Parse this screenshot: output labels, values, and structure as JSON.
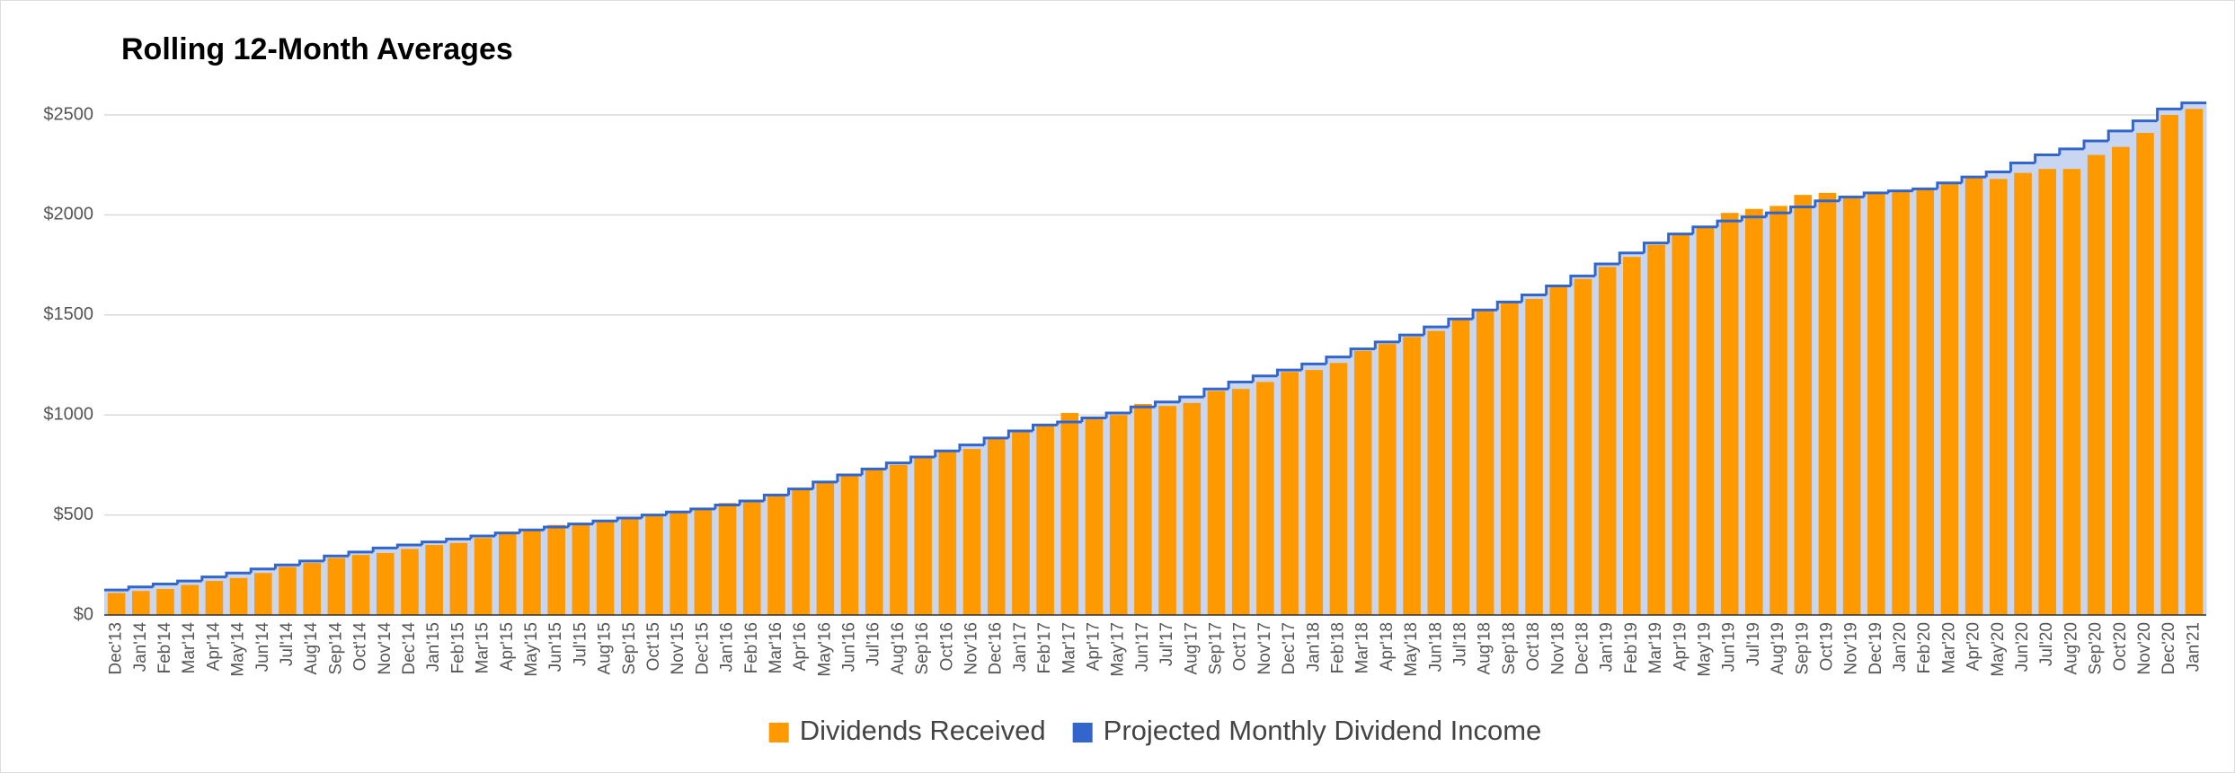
{
  "chart_data": {
    "type": "bar",
    "title": "Rolling 12-Month Averages",
    "categories": [
      "Dec'13",
      "Jan'14",
      "Feb'14",
      "Mar'14",
      "Apr'14",
      "May'14",
      "Jun'14",
      "Jul'14",
      "Aug'14",
      "Sep'14",
      "Oct'14",
      "Nov'14",
      "Dec'14",
      "Jan'15",
      "Feb'15",
      "Mar'15",
      "Apr'15",
      "May'15",
      "Jun'15",
      "Jul'15",
      "Aug'15",
      "Sep'15",
      "Oct'15",
      "Nov'15",
      "Dec'15",
      "Jan'16",
      "Feb'16",
      "Mar'16",
      "Apr'16",
      "May'16",
      "Jun'16",
      "Jul'16",
      "Aug'16",
      "Sep'16",
      "Oct'16",
      "Nov'16",
      "Dec'16",
      "Jan'17",
      "Feb'17",
      "Mar'17",
      "Apr'17",
      "May'17",
      "Jun'17",
      "Jul'17",
      "Aug'17",
      "Sep'17",
      "Oct'17",
      "Nov'17",
      "Dec'17",
      "Jan'18",
      "Feb'18",
      "Mar'18",
      "Apr'18",
      "May'18",
      "Jun'18",
      "Jul'18",
      "Aug'18",
      "Sep'18",
      "Oct'18",
      "Nov'18",
      "Dec'18",
      "Jan'19",
      "Feb'19",
      "Mar'19",
      "Apr'19",
      "May'19",
      "Jun'19",
      "Jul'19",
      "Aug'19",
      "Sep'19",
      "Oct'19",
      "Nov'19",
      "Dec'19",
      "Jan'20",
      "Feb'20",
      "Mar'20",
      "Apr'20",
      "May'20",
      "Jun'20",
      "Jul'20",
      "Aug'20",
      "Sep'20",
      "Oct'20",
      "Nov'20",
      "Dec'20",
      "Jan'21"
    ],
    "series": [
      {
        "name": "Dividends Received",
        "color": "#ff9900",
        "style": "bar",
        "values": [
          110,
          120,
          130,
          150,
          170,
          185,
          210,
          240,
          260,
          285,
          300,
          310,
          330,
          350,
          360,
          385,
          405,
          420,
          450,
          455,
          470,
          485,
          495,
          510,
          530,
          560,
          570,
          600,
          630,
          665,
          700,
          730,
          750,
          785,
          820,
          830,
          880,
          920,
          950,
          1010,
          985,
          1000,
          1055,
          1045,
          1060,
          1120,
          1130,
          1165,
          1215,
          1225,
          1260,
          1320,
          1355,
          1390,
          1420,
          1475,
          1520,
          1560,
          1580,
          1640,
          1680,
          1740,
          1790,
          1850,
          1900,
          1935,
          2010,
          2030,
          2045,
          2100,
          2110,
          2085,
          2110,
          2125,
          2130,
          2155,
          2185,
          2180,
          2210,
          2230,
          2230,
          2300,
          2340,
          2410,
          2500,
          2530
        ]
      },
      {
        "name": "Projected Monthly Dividend Income",
        "color": "#3366cc",
        "style": "stepped-area",
        "fill": "#c9d6f2",
        "values": [
          125,
          140,
          155,
          170,
          190,
          210,
          230,
          250,
          270,
          295,
          315,
          335,
          350,
          365,
          380,
          395,
          410,
          425,
          440,
          455,
          470,
          485,
          500,
          515,
          530,
          550,
          570,
          600,
          630,
          665,
          700,
          730,
          760,
          790,
          820,
          850,
          885,
          920,
          950,
          965,
          985,
          1010,
          1040,
          1065,
          1090,
          1130,
          1165,
          1195,
          1225,
          1255,
          1290,
          1330,
          1365,
          1400,
          1440,
          1480,
          1525,
          1565,
          1600,
          1645,
          1695,
          1755,
          1810,
          1860,
          1905,
          1940,
          1970,
          1990,
          2010,
          2040,
          2070,
          2090,
          2110,
          2120,
          2130,
          2160,
          2190,
          2215,
          2260,
          2300,
          2330,
          2370,
          2420,
          2470,
          2530,
          2560
        ]
      }
    ],
    "ylim": [
      0,
      2600
    ],
    "yticks": [
      {
        "value": 0,
        "label": "$0"
      },
      {
        "value": 500,
        "label": "$500"
      },
      {
        "value": 1000,
        "label": "$1000"
      },
      {
        "value": 1500,
        "label": "$1500"
      },
      {
        "value": 2000,
        "label": "$2000"
      },
      {
        "value": 2500,
        "label": "$2500"
      }
    ],
    "grid": true,
    "legend": "bottom"
  }
}
